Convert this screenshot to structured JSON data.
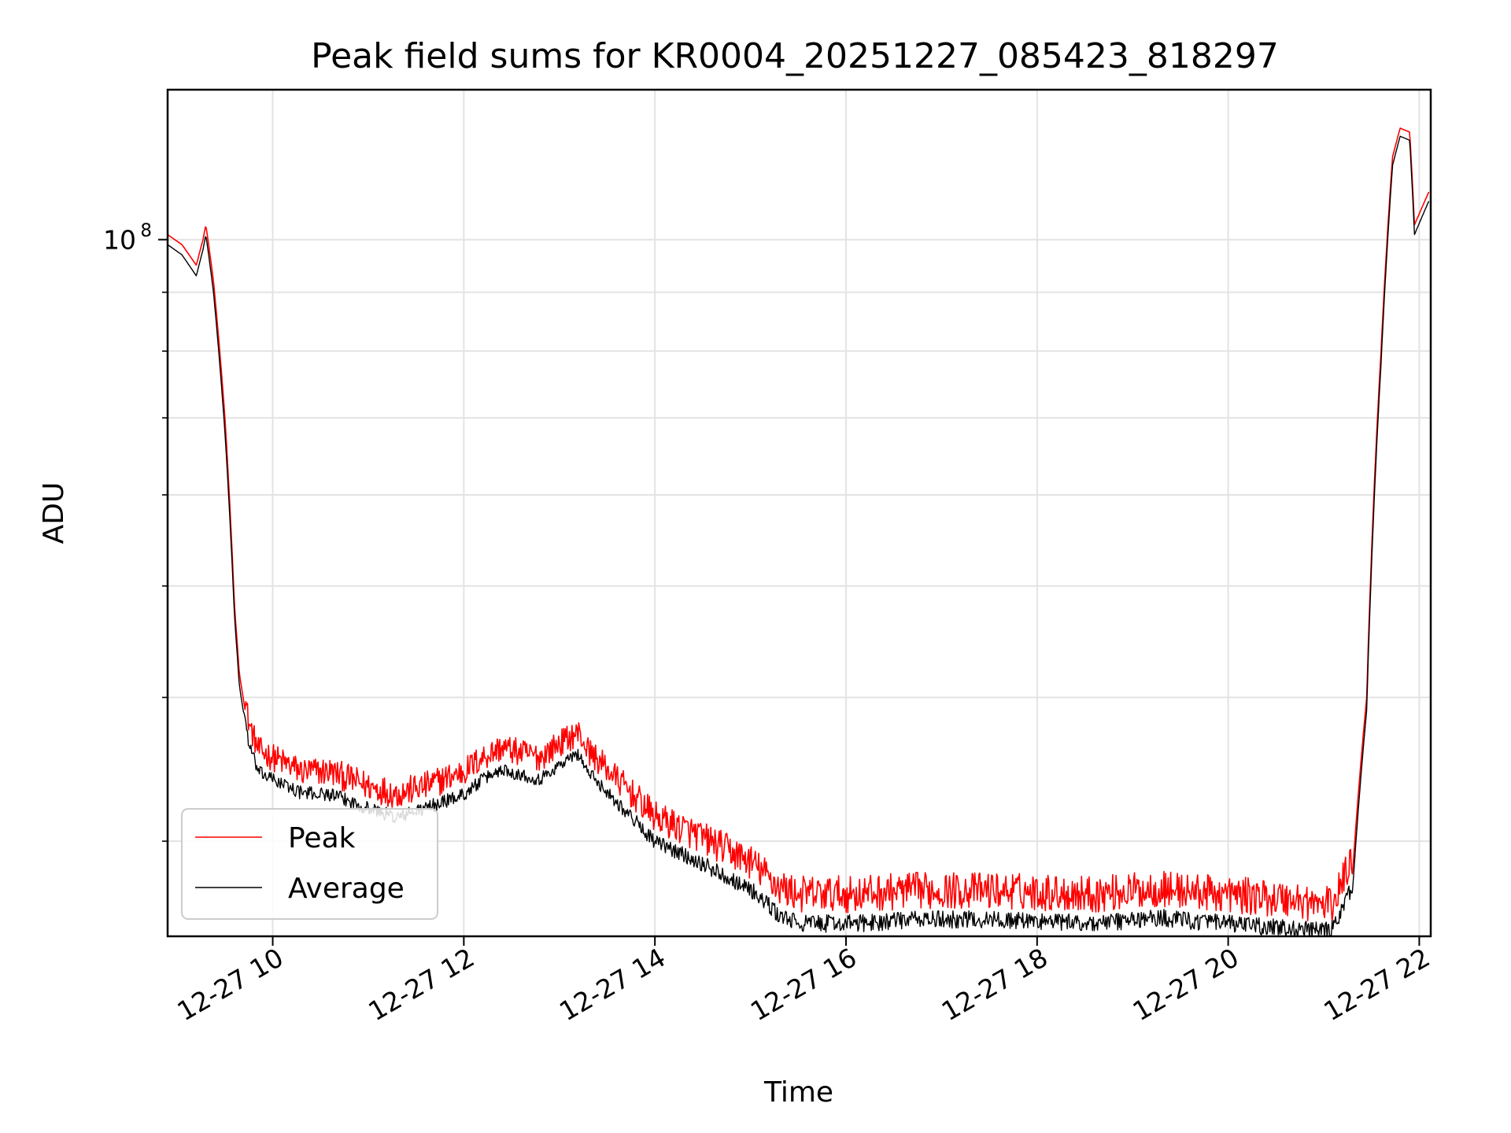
{
  "chart_data": {
    "type": "line",
    "title": "Peak field sums for KR0004_20251227_085423_818297",
    "xlabel": "Time",
    "ylabel": "ADU",
    "yscale": "log",
    "grid": true,
    "xlim_hours": [
      8.9,
      22.12
    ],
    "ylim": [
      24800000.0,
      135000000.0
    ],
    "x_ticks": [
      {
        "value": 10,
        "label": "12-27 10"
      },
      {
        "value": 12,
        "label": "12-27 12"
      },
      {
        "value": 14,
        "label": "12-27 14"
      },
      {
        "value": 16,
        "label": "12-27 16"
      },
      {
        "value": 18,
        "label": "12-27 18"
      },
      {
        "value": 20,
        "label": "12-27 20"
      },
      {
        "value": 22,
        "label": "12-27 22"
      }
    ],
    "y_major_ticks": [
      {
        "value": 100000000,
        "label_base": "10",
        "label_exp": "8"
      }
    ],
    "y_minor_ticks": [
      30000000,
      40000000,
      50000000,
      60000000,
      70000000,
      80000000,
      90000000
    ],
    "legend": {
      "location": "lower-left"
    },
    "series": [
      {
        "name": "Peak",
        "color": "#ff0000",
        "noise": 2000000,
        "x_hours": [
          8.9,
          9.05,
          9.2,
          9.27,
          9.3,
          9.38,
          9.5,
          9.6,
          9.65,
          9.75,
          9.85,
          10.0,
          10.3,
          10.6,
          11.0,
          11.3,
          11.6,
          12.0,
          12.2,
          12.4,
          12.6,
          12.8,
          13.0,
          13.2,
          13.3,
          13.6,
          14.0,
          14.4,
          15.0,
          15.3,
          15.5,
          15.8,
          16.1,
          16.7,
          17.5,
          18.1,
          18.6,
          19.3,
          19.7,
          20.2,
          20.7,
          21.0,
          21.1,
          21.3,
          21.45,
          21.6,
          21.72,
          21.8,
          21.9,
          21.95,
          22.1
        ],
        "values": [
          101000000,
          99000000,
          95000000,
          100000000,
          103000000,
          92000000,
          70000000,
          48000000,
          42000000,
          37000000,
          35000000,
          34500000,
          33500000,
          33500000,
          32500000,
          32000000,
          32500000,
          33500000,
          34500000,
          35200000,
          34800000,
          34500000,
          35500000,
          36300000,
          35000000,
          33000000,
          30500000,
          29500000,
          27800000,
          26400000,
          26000000,
          26000000,
          26000000,
          26200000,
          26200000,
          26100000,
          26000000,
          26300000,
          26100000,
          25900000,
          25700000,
          25400000,
          25500000,
          28000000,
          40000000,
          80000000,
          118000000,
          125000000,
          124000000,
          103000000,
          110000000
        ]
      },
      {
        "name": "Average",
        "color": "#000000",
        "noise": 900000,
        "x_hours": [
          8.9,
          9.05,
          9.2,
          9.27,
          9.3,
          9.38,
          9.5,
          9.6,
          9.65,
          9.75,
          9.85,
          10.0,
          10.3,
          10.6,
          11.0,
          11.3,
          11.6,
          12.0,
          12.2,
          12.4,
          12.6,
          12.8,
          13.0,
          13.2,
          13.3,
          13.6,
          14.0,
          14.4,
          15.0,
          15.3,
          15.5,
          15.8,
          16.1,
          16.7,
          17.5,
          18.1,
          18.6,
          19.3,
          19.7,
          20.2,
          20.7,
          21.0,
          21.1,
          21.3,
          21.45,
          21.6,
          21.72,
          21.8,
          21.9,
          21.95,
          22.1
        ],
        "values": [
          99000000,
          97000000,
          93000000,
          98000000,
          101000000,
          90000000,
          68000000,
          47000000,
          41000000,
          36000000,
          34000000,
          33500000,
          32600000,
          32500000,
          31600000,
          31000000,
          31600000,
          32500000,
          33500000,
          34200000,
          33800000,
          33500000,
          34500000,
          35300000,
          34000000,
          32000000,
          29500000,
          28500000,
          26800000,
          25400000,
          25000000,
          25000000,
          25000000,
          25200000,
          25200000,
          25100000,
          25000000,
          25300000,
          25100000,
          24900000,
          24700000,
          24600000,
          24700000,
          27000000,
          39000000,
          78000000,
          116000000,
          123000000,
          122000000,
          101000000,
          108000000
        ]
      }
    ]
  }
}
